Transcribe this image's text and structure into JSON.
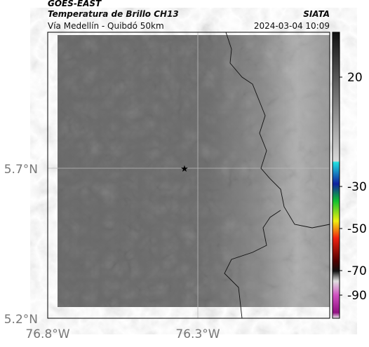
{
  "header": {
    "source": "GOES-EAST",
    "product": "Temperatura de Brillo CH13",
    "agency": "SIATA",
    "route": "Vía Medellín - Quibdó 50km",
    "datetime": "2024-03-04 10:09"
  },
  "axes": {
    "lat_labels": [
      "5.7°N",
      "5.2°N"
    ],
    "lon_labels": [
      "76.8°W",
      "76.3°W"
    ]
  },
  "colorbar": {
    "tick_labels": [
      "20",
      "-30",
      "-50",
      "-70",
      "-90"
    ]
  }
}
